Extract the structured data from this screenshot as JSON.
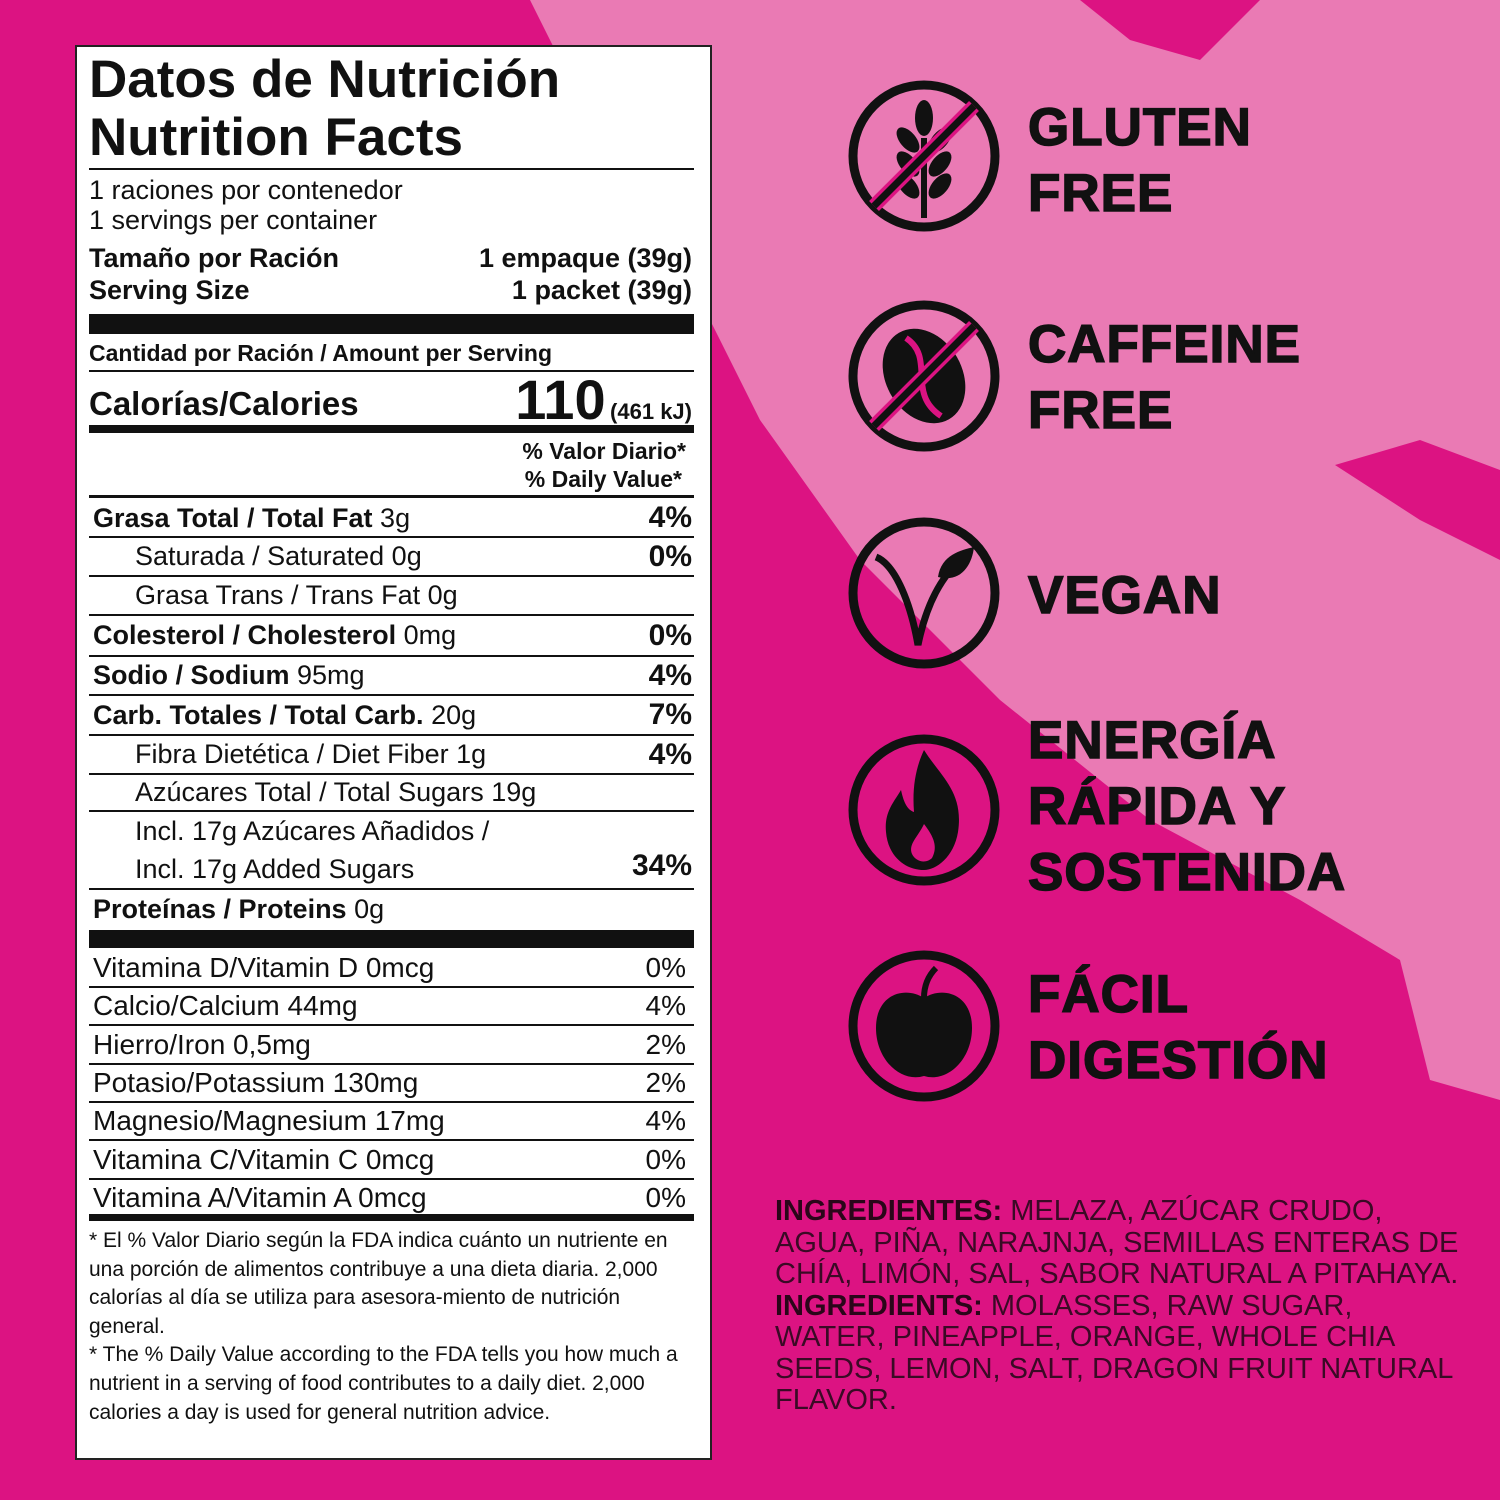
{
  "colors": {
    "background": "#dc1382",
    "swath": "#ea7ab4",
    "text": "#111111"
  },
  "label": {
    "title_es": "Datos de Nutrición",
    "title_en": "Nutrition Facts",
    "servings_es": "1 raciones por contenedor",
    "servings_en": "1 servings per container",
    "serving_size_es": "Tamaño por Ración",
    "serving_size_es_value": "1 empaque (39g)",
    "serving_size_en": "Serving Size",
    "serving_size_en_value": "1 packet (39g)",
    "amount_per_serving": "Cantidad por Ración / Amount per Serving",
    "calories_label": "Calorías/Calories",
    "calories_value": "110",
    "calories_kj": "(461 kJ)",
    "dv_es": "% Valor Diario*",
    "dv_en": "% Daily Value*",
    "nutrients": [
      {
        "bold": "Grasa Total / Total Fat",
        "amount": " 3g",
        "dv": "4%"
      },
      {
        "bold": "",
        "name": "Saturada / Saturated 0g",
        "dv": "0%"
      },
      {
        "bold": "",
        "name": "Grasa Trans / Trans Fat 0g",
        "dv": ""
      },
      {
        "bold": "Colesterol / Cholesterol",
        "amount": " 0mg",
        "dv": "0%"
      },
      {
        "bold": "Sodio / Sodium",
        "amount": " 95mg",
        "dv": "4%"
      },
      {
        "bold": "Carb. Totales / Total Carb.",
        "amount": " 20g",
        "dv": "7%"
      },
      {
        "bold": "",
        "name": "Fibra Dietética / Diet Fiber 1g",
        "dv": "4%"
      },
      {
        "bold": "",
        "name": "Azúcares Total / Total Sugars 19g",
        "dv": ""
      },
      {
        "bold": "",
        "name": "Incl. 17g Azúcares Añadidos /",
        "name2": "Incl. 17g Added Sugars",
        "dv": "34%"
      },
      {
        "bold": "Proteínas / Proteins",
        "amount": " 0g",
        "dv": ""
      }
    ],
    "vitamins": [
      {
        "name": "Vitamina D/Vitamin D 0mcg",
        "dv": "0%"
      },
      {
        "name": "Calcio/Calcium 44mg",
        "dv": "4%"
      },
      {
        "name": "Hierro/Iron 0,5mg",
        "dv": "2%"
      },
      {
        "name": "Potasio/Potassium 130mg",
        "dv": "2%"
      },
      {
        "name": "Magnesio/Magnesium 17mg",
        "dv": "4%"
      },
      {
        "name": "Vitamina C/Vitamin C 0mcg",
        "dv": "0%"
      },
      {
        "name": "Vitamina A/Vitamin A 0mcg",
        "dv": "0%"
      }
    ],
    "footnote_es": "* El % Valor Diario según la FDA indica cuánto un nutriente en una porción de alimentos contribuye a una dieta diaria. 2,000 calorías al día se utiliza para asesora-miento de nutrición general.",
    "footnote_en": "* The % Daily Value according to the FDA tells you how much a nutrient in a serving of food contributes to a daily diet. 2,000 calories a day is used for general nutrition advice."
  },
  "claims": [
    {
      "icon": "no-gluten-wheat-icon",
      "line1": "GLUTEN",
      "line2": "FREE"
    },
    {
      "icon": "no-caffeine-coffee-bean-icon",
      "line1": "CAFFEINE",
      "line2": "FREE"
    },
    {
      "icon": "vegan-leaf-icon",
      "line1": "VEGAN"
    },
    {
      "icon": "flame-icon",
      "line1": "ENERGÍA",
      "line2": "RÁPIDA Y",
      "line3": "SOSTENIDA"
    },
    {
      "icon": "apple-icon",
      "line1": "FÁCIL",
      "line2": "DIGESTIÓN"
    }
  ],
  "ingredients": {
    "es_label": "INGREDIENTES:",
    "es_text": " MELAZA, AZÚCAR CRUDO, AGUA, PIÑA, NARAJNJA, SEMILLAS ENTERAS DE CHÍA, LIMÓN, SAL, SABOR NATURAL A PITAHAYA.",
    "en_label": "INGREDIENTS:",
    "en_text": " MOLASSES, RAW SUGAR, WATER, PINEAPPLE, ORANGE, WHOLE CHIA SEEDS, LEMON, SALT, DRAGON FRUIT NATURAL FLAVOR."
  }
}
